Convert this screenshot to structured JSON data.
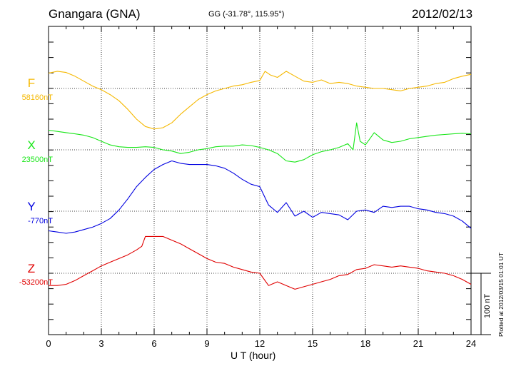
{
  "header": {
    "station": "Gnangara (GNA)",
    "coords": "GG (-31.78°, 115.95°)",
    "date": "2012/02/13"
  },
  "footer": {
    "plotted": "Plotted at 2012/03/15 01:01  UT",
    "scale": "100 nT"
  },
  "chart_data": {
    "type": "line",
    "title": "Gnangara (GNA)",
    "xlabel": "U T (hour)",
    "ylabel": "",
    "xlim": [
      0,
      24
    ],
    "xticks": [
      "0",
      "3",
      "6",
      "9",
      "12",
      "15",
      "18",
      "21",
      "24"
    ],
    "grid": true,
    "y_unit": "nT",
    "y_scale_bar_nT": 100,
    "series": [
      {
        "name": "F",
        "baseline_label": "58160nT",
        "baseline_nT": 58160,
        "color": "#f5b800",
        "x": [
          0,
          0.5,
          1,
          1.5,
          2,
          2.5,
          3,
          3.5,
          4,
          4.5,
          5,
          5.5,
          6,
          6.5,
          7,
          7.5,
          8,
          8.5,
          9,
          9.5,
          10,
          10.5,
          11,
          11.5,
          12,
          12.3,
          12.6,
          13,
          13.5,
          14,
          14.5,
          15,
          15.5,
          16,
          16.5,
          17,
          17.5,
          18,
          18.5,
          19,
          19.5,
          20,
          20.5,
          21,
          21.5,
          22,
          22.5,
          23,
          23.5,
          24
        ],
        "y": [
          58185,
          58188,
          58186,
          58180,
          58172,
          58164,
          58158,
          58150,
          58140,
          58126,
          58110,
          58098,
          58094,
          58096,
          58104,
          58118,
          58130,
          58142,
          58150,
          58156,
          58160,
          58164,
          58166,
          58170,
          58173,
          58188,
          58182,
          58178,
          58188,
          58180,
          58172,
          58170,
          58174,
          58168,
          58170,
          58168,
          58164,
          58162,
          58160,
          58160,
          58158,
          58156,
          58160,
          58162,
          58164,
          58168,
          58170,
          58176,
          58180,
          58183
        ]
      },
      {
        "name": "X",
        "baseline_label": "23500nT",
        "baseline_nT": 23500,
        "color": "#19e619",
        "x": [
          0,
          0.5,
          1,
          1.5,
          2,
          2.5,
          3,
          3.5,
          4,
          4.5,
          5,
          5.5,
          6,
          6.5,
          7,
          7.5,
          8,
          8.5,
          9,
          9.5,
          10,
          10.5,
          11,
          11.5,
          12,
          12.5,
          13,
          13.5,
          14,
          14.5,
          15,
          15.5,
          16,
          16.5,
          17,
          17.3,
          17.5,
          17.7,
          18,
          18.3,
          18.5,
          19,
          19.5,
          20,
          20.5,
          21,
          21.5,
          22,
          22.5,
          23,
          23.5,
          24
        ],
        "y": [
          23532,
          23530,
          23528,
          23526,
          23524,
          23520,
          23514,
          23508,
          23505,
          23504,
          23504,
          23505,
          23504,
          23500,
          23498,
          23494,
          23496,
          23500,
          23502,
          23505,
          23506,
          23506,
          23508,
          23507,
          23504,
          23500,
          23494,
          23482,
          23480,
          23484,
          23492,
          23497,
          23500,
          23504,
          23510,
          23500,
          23544,
          23514,
          23508,
          23520,
          23528,
          23516,
          23512,
          23514,
          23518,
          23520,
          23522,
          23524,
          23525,
          23526,
          23527,
          23526
        ]
      },
      {
        "name": "Y",
        "baseline_label": "-770nT",
        "baseline_nT": -770,
        "color": "#0000e0",
        "x": [
          0,
          0.5,
          1,
          1.5,
          2,
          2.5,
          3,
          3.5,
          4,
          4.5,
          5,
          5.5,
          6,
          6.5,
          7,
          7.5,
          8,
          8.5,
          9,
          9.5,
          10,
          10.5,
          11,
          11.5,
          12,
          12.5,
          13,
          13.5,
          14,
          14.5,
          15,
          15.5,
          16,
          16.5,
          17,
          17.5,
          18,
          18.5,
          19,
          19.5,
          20,
          20.5,
          21,
          21.5,
          22,
          22.5,
          23,
          23.5,
          24
        ],
        "y": [
          -802,
          -804,
          -806,
          -804,
          -800,
          -796,
          -790,
          -782,
          -768,
          -750,
          -730,
          -715,
          -702,
          -694,
          -688,
          -692,
          -694,
          -694,
          -694,
          -696,
          -700,
          -708,
          -718,
          -726,
          -730,
          -760,
          -772,
          -756,
          -778,
          -770,
          -780,
          -772,
          -774,
          -776,
          -784,
          -770,
          -768,
          -772,
          -762,
          -764,
          -762,
          -762,
          -766,
          -768,
          -772,
          -774,
          -778,
          -786,
          -798
        ]
      },
      {
        "name": "Z",
        "baseline_label": "-53200nT",
        "baseline_nT": -53200,
        "color": "#e00000",
        "x": [
          0,
          0.5,
          1,
          1.5,
          2,
          2.5,
          3,
          3.5,
          4,
          4.5,
          5,
          5.3,
          5.5,
          6,
          6.5,
          7,
          7.5,
          8,
          8.5,
          9,
          9.5,
          10,
          10.5,
          11,
          11.5,
          12,
          12.5,
          13,
          13.5,
          14,
          14.5,
          15,
          15.5,
          16,
          16.5,
          17,
          17.5,
          18,
          18.5,
          19,
          19.5,
          20,
          20.5,
          21,
          21.5,
          22,
          22.5,
          23,
          23.5,
          24
        ],
        "y": [
          -53220,
          -53220,
          -53218,
          -53212,
          -53204,
          -53196,
          -53188,
          -53182,
          -53176,
          -53170,
          -53162,
          -53156,
          -53140,
          -53140,
          -53140,
          -53146,
          -53152,
          -53160,
          -53168,
          -53176,
          -53182,
          -53184,
          -53190,
          -53194,
          -53198,
          -53200,
          -53220,
          -53214,
          -53220,
          -53226,
          -53222,
          -53218,
          -53214,
          -53210,
          -53204,
          -53202,
          -53194,
          -53192,
          -53186,
          -53188,
          -53190,
          -53188,
          -53190,
          -53192,
          -53196,
          -53198,
          -53200,
          -53204,
          -53210,
          -53218
        ]
      }
    ]
  }
}
